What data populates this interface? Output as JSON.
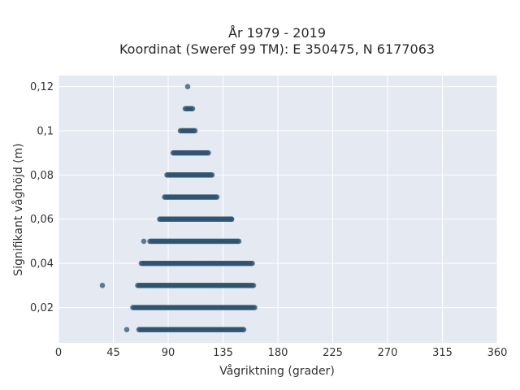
{
  "chart_data": {
    "type": "scatter",
    "title_line1": "År 1979 - 2019",
    "title_line2": "Koordinat (Sweref 99 TM): E 350475, N 6177063",
    "xlabel": "Vågriktning (grader)",
    "ylabel": "Signifikant våghöjd (m)",
    "xlim": [
      0,
      360
    ],
    "ylim": [
      0.004,
      0.125
    ],
    "x_ticks": [
      {
        "value": 0,
        "label": "0"
      },
      {
        "value": 45,
        "label": "45"
      },
      {
        "value": 90,
        "label": "90"
      },
      {
        "value": 135,
        "label": "135"
      },
      {
        "value": 180,
        "label": "180"
      },
      {
        "value": 225,
        "label": "225"
      },
      {
        "value": 270,
        "label": "270"
      },
      {
        "value": 315,
        "label": "315"
      },
      {
        "value": 360,
        "label": "360"
      }
    ],
    "y_ticks": [
      {
        "value": 0.02,
        "label": "0,02"
      },
      {
        "value": 0.04,
        "label": "0,04"
      },
      {
        "value": 0.06,
        "label": "0,06"
      },
      {
        "value": 0.08,
        "label": "0,08"
      },
      {
        "value": 0.1,
        "label": "0,1"
      },
      {
        "value": 0.12,
        "label": "0,12"
      }
    ],
    "grid": true,
    "marker_color": "#2f5470",
    "background_color": "#e5e9f2",
    "bands": [
      {
        "y": 0.01,
        "x_min": 66,
        "x_max": 152
      },
      {
        "y": 0.02,
        "x_min": 61,
        "x_max": 161
      },
      {
        "y": 0.03,
        "x_min": 65,
        "x_max": 160
      },
      {
        "y": 0.04,
        "x_min": 68,
        "x_max": 158
      },
      {
        "y": 0.05,
        "x_min": 75,
        "x_max": 148
      },
      {
        "y": 0.06,
        "x_min": 83,
        "x_max": 142
      },
      {
        "y": 0.07,
        "x_min": 88,
        "x_max": 130
      },
      {
        "y": 0.08,
        "x_min": 89,
        "x_max": 126
      },
      {
        "y": 0.09,
        "x_min": 94,
        "x_max": 123
      },
      {
        "y": 0.1,
        "x_min": 100,
        "x_max": 112
      },
      {
        "y": 0.11,
        "x_min": 104,
        "x_max": 110
      }
    ],
    "outliers": [
      {
        "x": 56,
        "y": 0.01
      },
      {
        "x": 36,
        "y": 0.03
      },
      {
        "x": 70,
        "y": 0.05
      },
      {
        "x": 142,
        "y": 0.06
      },
      {
        "x": 87,
        "y": 0.07
      },
      {
        "x": 159,
        "y": 0.04
      },
      {
        "x": 106,
        "y": 0.12
      }
    ]
  }
}
